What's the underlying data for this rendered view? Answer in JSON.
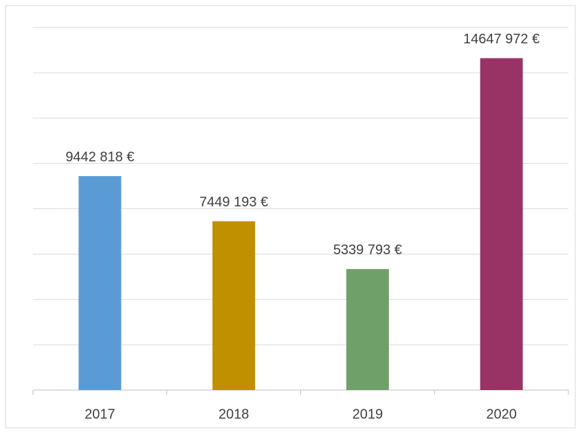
{
  "chart_data": {
    "type": "bar",
    "categories": [
      "2017",
      "2018",
      "2019",
      "2020"
    ],
    "values": [
      9442818,
      7449193,
      5339793,
      14647972
    ],
    "value_labels": [
      "9442 818 €",
      "7449 193 €",
      "5339 793 €",
      "14647 972 €"
    ],
    "colors": [
      "#5b9bd5",
      "#c09000",
      "#70a06a",
      "#993366"
    ],
    "ylim": [
      0,
      16000000
    ],
    "yticks": [
      0,
      2000000,
      4000000,
      6000000,
      8000000,
      10000000,
      12000000,
      14000000,
      16000000
    ],
    "grid": true
  }
}
